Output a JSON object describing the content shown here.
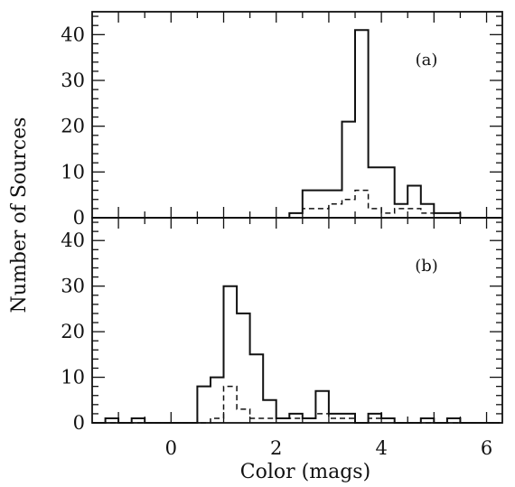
{
  "chart_data": {
    "type": "histogram",
    "xlabel": "Color (mags)",
    "ylabel": "Number of Sources",
    "xlim": [
      -1.5,
      6.3
    ],
    "x_ticks": [
      0,
      2,
      4,
      6
    ],
    "bin_width": 0.25,
    "bin_start": -1.5,
    "panels": [
      {
        "label": "(a)",
        "ylim": [
          0,
          45
        ],
        "y_ticks": [
          0,
          10,
          20,
          30,
          40
        ],
        "series": [
          {
            "style": "solid",
            "counts": [
              0,
              0,
              0,
              0,
              0,
              0,
              0,
              0,
              0,
              0,
              0,
              0,
              0,
              0,
              0,
              1,
              6,
              6,
              6,
              21,
              41,
              11,
              11,
              3,
              7,
              3,
              1,
              1,
              0,
              0,
              0
            ]
          },
          {
            "style": "dashed",
            "counts": [
              0,
              0,
              0,
              0,
              0,
              0,
              0,
              0,
              0,
              0,
              0,
              0,
              0,
              0,
              0,
              1,
              2,
              2,
              3,
              4,
              6,
              2,
              1,
              2,
              2,
              1,
              0,
              0,
              0,
              0,
              0
            ]
          }
        ]
      },
      {
        "label": "(b)",
        "ylim": [
          0,
          45
        ],
        "y_ticks": [
          0,
          10,
          20,
          30,
          40
        ],
        "series": [
          {
            "style": "solid",
            "counts": [
              0,
              1,
              0,
              1,
              0,
              0,
              0,
              0,
              8,
              10,
              30,
              24,
              15,
              5,
              1,
              2,
              1,
              7,
              2,
              2,
              0,
              2,
              1,
              0,
              0,
              1,
              0,
              1,
              0,
              0,
              0
            ]
          },
          {
            "style": "dashed",
            "counts": [
              0,
              0,
              0,
              0,
              0,
              0,
              0,
              0,
              0,
              1,
              8,
              3,
              1,
              1,
              1,
              1,
              1,
              2,
              1,
              1,
              0,
              1,
              1,
              0,
              0,
              0,
              0,
              0,
              0,
              0,
              0
            ]
          }
        ]
      }
    ]
  }
}
